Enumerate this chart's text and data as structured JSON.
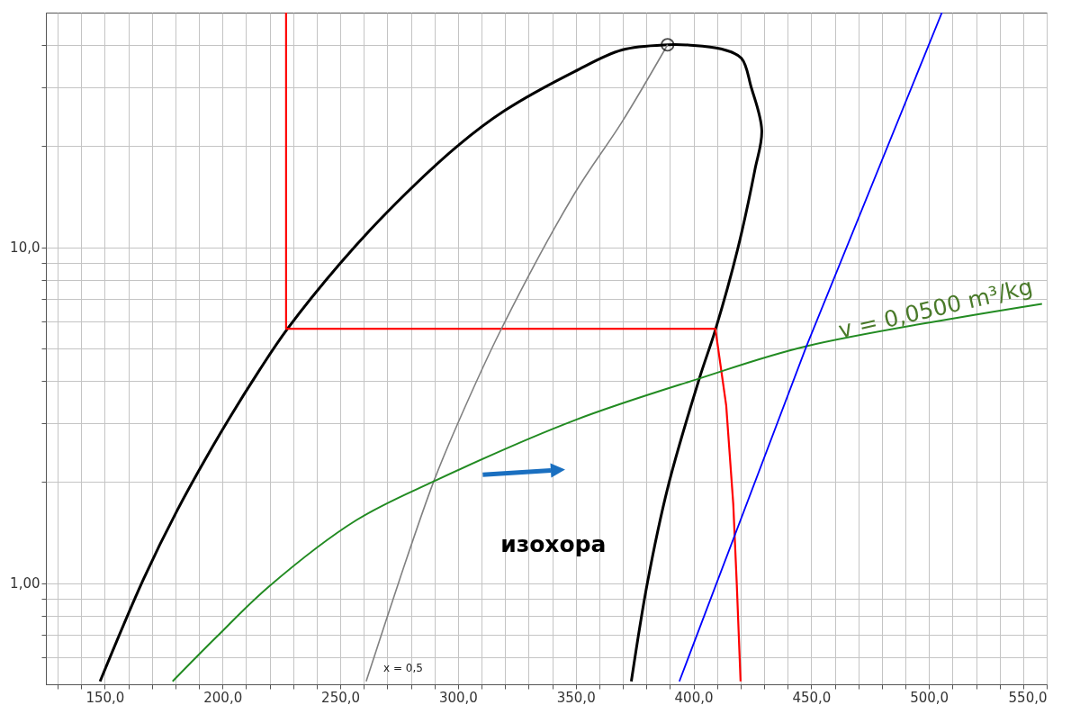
{
  "chart_data": {
    "type": "line",
    "log": "y",
    "grid": true,
    "line_style": "solid",
    "xlim": [
      125,
      550
    ],
    "ylim": [
      0.5,
      50
    ],
    "xticks": [
      {
        "value": 130,
        "label": null
      },
      {
        "value": 140,
        "label": null
      },
      {
        "value": 150,
        "label": "150,0"
      },
      {
        "value": 160,
        "label": null
      },
      {
        "value": 170,
        "label": null
      },
      {
        "value": 180,
        "label": null
      },
      {
        "value": 190,
        "label": null
      },
      {
        "value": 200,
        "label": "200,0"
      },
      {
        "value": 210,
        "label": null
      },
      {
        "value": 220,
        "label": null
      },
      {
        "value": 230,
        "label": null
      },
      {
        "value": 240,
        "label": null
      },
      {
        "value": 250,
        "label": "250,0"
      },
      {
        "value": 260,
        "label": null
      },
      {
        "value": 270,
        "label": null
      },
      {
        "value": 280,
        "label": null
      },
      {
        "value": 290,
        "label": null
      },
      {
        "value": 300,
        "label": "300,0"
      },
      {
        "value": 310,
        "label": null
      },
      {
        "value": 320,
        "label": null
      },
      {
        "value": 330,
        "label": null
      },
      {
        "value": 340,
        "label": null
      },
      {
        "value": 350,
        "label": "350,0"
      },
      {
        "value": 360,
        "label": null
      },
      {
        "value": 370,
        "label": null
      },
      {
        "value": 380,
        "label": null
      },
      {
        "value": 390,
        "label": null
      },
      {
        "value": 400,
        "label": "400,0"
      },
      {
        "value": 410,
        "label": null
      },
      {
        "value": 420,
        "label": null
      },
      {
        "value": 430,
        "label": null
      },
      {
        "value": 440,
        "label": null
      },
      {
        "value": 450,
        "label": "450,0"
      },
      {
        "value": 460,
        "label": null
      },
      {
        "value": 470,
        "label": null
      },
      {
        "value": 480,
        "label": null
      },
      {
        "value": 490,
        "label": null
      },
      {
        "value": 500,
        "label": "500,0"
      },
      {
        "value": 510,
        "label": null
      },
      {
        "value": 520,
        "label": null
      },
      {
        "value": 530,
        "label": null
      },
      {
        "value": 540,
        "label": null
      },
      {
        "value": 550,
        "label": "550,0"
      }
    ],
    "yticks": [
      {
        "value": 0.6,
        "label": null
      },
      {
        "value": 0.7,
        "label": null
      },
      {
        "value": 0.8,
        "label": null
      },
      {
        "value": 0.9,
        "label": null
      },
      {
        "value": 1,
        "label": "1,00"
      },
      {
        "value": 2,
        "label": null
      },
      {
        "value": 3,
        "label": null
      },
      {
        "value": 4,
        "label": null
      },
      {
        "value": 5,
        "label": null
      },
      {
        "value": 6,
        "label": null
      },
      {
        "value": 7,
        "label": null
      },
      {
        "value": 8,
        "label": null
      },
      {
        "value": 9,
        "label": null
      },
      {
        "value": 10,
        "label": "10,0"
      },
      {
        "value": 20,
        "label": null
      },
      {
        "value": 30,
        "label": null
      },
      {
        "value": 40,
        "label": null
      }
    ],
    "series": [
      {
        "color": "#000000",
        "x": [
          148,
          166.5,
          180.8,
          199.3,
          215.8,
          227.6,
          249.8,
          269.8,
          299.7,
          319.7,
          349.6,
          369.6,
          389,
          398.7,
          411.6,
          420.3,
          424.5,
          429,
          426,
          418.8,
          409.3,
          402.5,
          389.2,
          380.4,
          373.6
        ],
        "values": [
          0.51,
          1.03,
          1.65,
          2.81,
          4.32,
          5.72,
          8.93,
          12.7,
          20,
          25.5,
          33.4,
          38.7,
          40.1,
          40,
          39,
          36.6,
          30,
          22.3,
          16.9,
          9.9,
          5.68,
          4.07,
          1.94,
          1,
          0.51
        ]
      },
      {
        "color": "#ff0000",
        "x": [
          227,
          227,
          409.3,
          413.9,
          416.9,
          418.4,
          420
        ],
        "values": [
          50,
          5.72,
          5.72,
          3.38,
          1.72,
          0.99,
          0.51
        ]
      },
      {
        "color": "#808080",
        "x": [
          261,
          275.3,
          289.7,
          300,
          318,
          349.6,
          369.6,
          389
        ],
        "values": [
          0.51,
          1.03,
          2.01,
          3,
          5.64,
          14.5,
          23.6,
          40.1
        ]
      },
      {
        "color": "#228b22",
        "x": [
          178.8,
          197.3,
          219.9,
          256.8,
          289.7,
          349.2,
          402.5,
          448,
          548
        ],
        "values": [
          0.51,
          0.69,
          0.98,
          1.54,
          2.01,
          3.05,
          4.07,
          5.08,
          6.79
        ]
      },
      {
        "color": "#0000ff",
        "x": [
          394,
          448,
          505.5
        ],
        "values": [
          0.51,
          5.08,
          50
        ]
      },
      {
        "type": "scatter",
        "marker": "circle",
        "color": "#000000",
        "x": [
          389
        ],
        "values": [
          40.1
        ]
      }
    ],
    "annotations": [
      "v = 0,0500 m³/kg",
      "x = 0,5",
      "изохора"
    ]
  }
}
